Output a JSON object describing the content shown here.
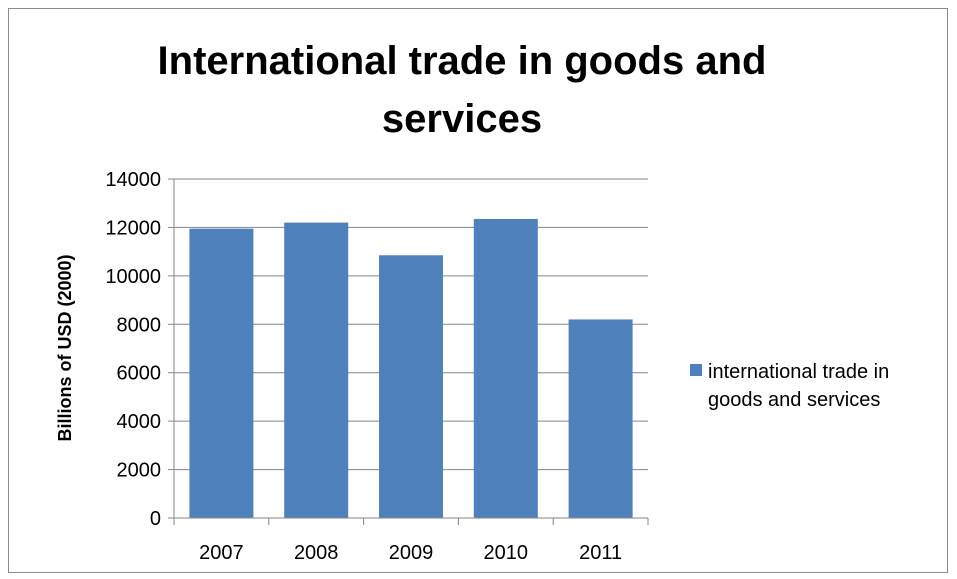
{
  "chart_data": {
    "type": "bar",
    "title": "International trade in goods and services",
    "title_lines": [
      "International trade in goods and",
      "services"
    ],
    "ylabel": "Billions of USD (2000)",
    "xlabel": "",
    "categories": [
      "2007",
      "2008",
      "2009",
      "2010",
      "2011"
    ],
    "series": [
      {
        "name": "international trade in goods and services",
        "name_lines": [
          "international trade in",
          "goods and services"
        ],
        "color": "#4F81BD",
        "values": [
          11950,
          12200,
          10850,
          12350,
          8200
        ]
      }
    ],
    "ylim": [
      0,
      14000
    ],
    "yticks": [
      "0",
      "2000",
      "4000",
      "6000",
      "8000",
      "10000",
      "12000",
      "14000"
    ],
    "grid": true,
    "legend_position": "right"
  }
}
